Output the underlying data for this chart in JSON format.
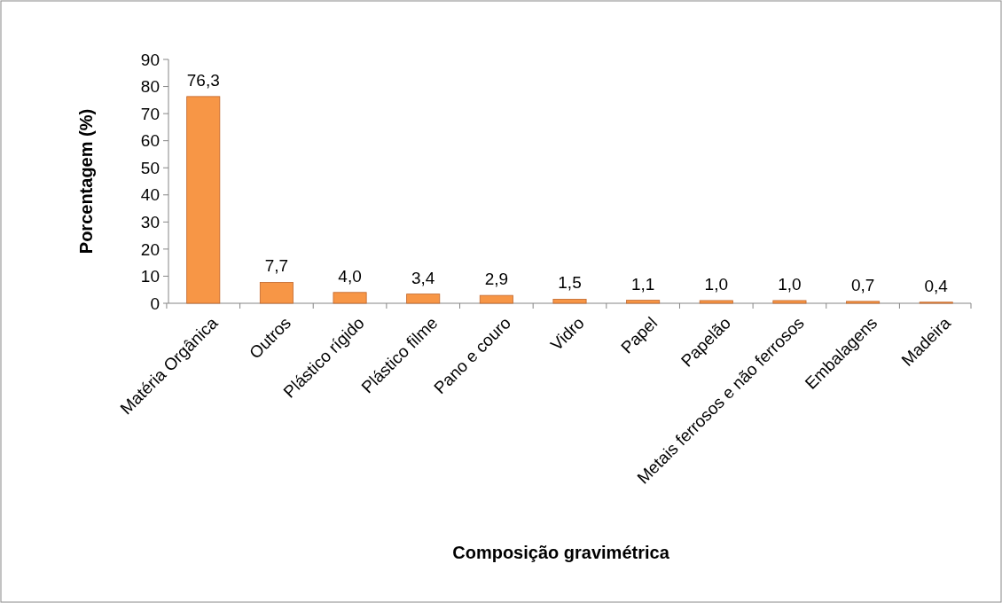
{
  "chart_data": {
    "type": "bar",
    "xlabel": "Composição gravimétrica",
    "ylabel": "Porcentagem (%)",
    "categories": [
      "Matéria Orgânica",
      "Outros",
      "Plástico rígido",
      "Plástico filme",
      "Pano e couro",
      "Vidro",
      "Papel",
      "Papelão",
      "Metais ferrosos e não ferrosos",
      "Embalagens",
      "Madeira"
    ],
    "values": [
      76.3,
      7.7,
      4.0,
      3.4,
      2.9,
      1.5,
      1.1,
      1.0,
      1.0,
      0.7,
      0.4
    ],
    "value_labels": [
      "76,3",
      "7,7",
      "4,0",
      "3,4",
      "2,9",
      "1,5",
      "1,1",
      "1,0",
      "1,0",
      "0,7",
      "0,4"
    ],
    "color": "#f79646",
    "ylim": [
      0,
      90
    ],
    "yticks": [
      0,
      10,
      20,
      30,
      40,
      50,
      60,
      70,
      80,
      90
    ],
    "grid": false
  }
}
